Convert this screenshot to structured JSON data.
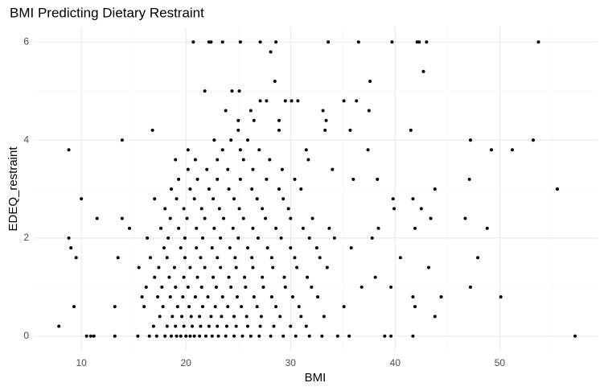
{
  "chart_data": {
    "type": "scatter",
    "title": "BMI Predicting Dietary Restraint",
    "x_label": "BMI",
    "y_label": "EDEQ_restraint",
    "color": "#000000",
    "grid": true,
    "xlim": [
      5.45,
      59.35
    ],
    "ylim": [
      -0.3,
      6.3
    ],
    "xticks": [
      10,
      20,
      30,
      40,
      50
    ],
    "yticks": [
      0,
      2,
      4,
      6
    ],
    "xminor": [
      15,
      25,
      35,
      45,
      55
    ],
    "yminor": [
      1,
      3,
      5
    ],
    "x": [
      15.4,
      16.5,
      17.2,
      18.0,
      18.6,
      19.1,
      19.5,
      20.0,
      20.4,
      20.8,
      21.3,
      21.9,
      22.5,
      23.1,
      23.8,
      24.6,
      25.4,
      26.2,
      27.0,
      28.1,
      29.3,
      30.5,
      31.8,
      33.0,
      34.5,
      35.6,
      10.5,
      10.9,
      11.2,
      13.2,
      39.6,
      39.0,
      41.7,
      57.2,
      16.9,
      18.2,
      19.0,
      19.8,
      20.6,
      21.4,
      22.2,
      23.0,
      23.9,
      24.8,
      25.9,
      27.1,
      28.4,
      30.0,
      31.5,
      7.85,
      17.5,
      18.7,
      19.6,
      20.5,
      21.3,
      22.4,
      23.4,
      24.6,
      25.8,
      27.2,
      29.0,
      31.0,
      33.2,
      43.8,
      16.0,
      17.8,
      19.2,
      20.3,
      21.6,
      22.8,
      24.0,
      25.3,
      26.8,
      28.6,
      30.8,
      35.1,
      9.3,
      13.2,
      41.9,
      15.8,
      17.3,
      18.5,
      19.7,
      20.9,
      22.1,
      23.5,
      24.9,
      26.5,
      28.2,
      30.2,
      32.6,
      41.7,
      44.4,
      50.1,
      16.2,
      17.7,
      19.0,
      20.2,
      21.5,
      22.9,
      24.3,
      25.7,
      27.4,
      29.5,
      32.0,
      36.8,
      47.2,
      39.6,
      17.0,
      18.4,
      19.8,
      21.1,
      22.6,
      24.1,
      25.6,
      27.3,
      29.4,
      31.6,
      38.1,
      15.5,
      17.4,
      18.9,
      20.4,
      21.8,
      23.3,
      24.8,
      26.4,
      28.3,
      30.6,
      33.5,
      43.2,
      16.6,
      18.2,
      19.9,
      21.4,
      23.0,
      24.7,
      26.3,
      28.2,
      30.4,
      32.8,
      9.5,
      13.5,
      40.5,
      47.9,
      17.9,
      19.5,
      21.0,
      22.5,
      24.2,
      25.9,
      27.8,
      30.0,
      32.5,
      35.8,
      9.0,
      16.3,
      18.3,
      19.9,
      21.6,
      23.3,
      25.0,
      26.9,
      29.1,
      31.8,
      34.2,
      8.8,
      37.8,
      17.6,
      19.3,
      21.0,
      22.7,
      24.5,
      26.4,
      28.6,
      31.2,
      33.7,
      14.6,
      48.8,
      38.4,
      41.9,
      18.5,
      20.1,
      21.8,
      23.6,
      25.5,
      27.6,
      30.0,
      32.1,
      11.5,
      13.9,
      46.7,
      43.4,
      18.0,
      19.8,
      21.5,
      23.2,
      25.1,
      27.3,
      29.8,
      39.9,
      42.5,
      17.0,
      19.1,
      20.8,
      22.6,
      24.6,
      26.8,
      29.3,
      10.0,
      39.8,
      41.7,
      18.6,
      20.4,
      22.2,
      24.1,
      26.3,
      28.9,
      31.0,
      55.5,
      43.8,
      19.3,
      21.1,
      23.0,
      25.2,
      27.7,
      30.4,
      36.0,
      38.3,
      47.1,
      20.2,
      22.0,
      24.0,
      26.4,
      29.2,
      34.0,
      19.0,
      20.9,
      23.0,
      25.5,
      28.0,
      31.7,
      8.8,
      20.2,
      23.5,
      25.2,
      27.0,
      31.5,
      37.4,
      49.2,
      51.2,
      13.9,
      22.7,
      24.3,
      25.9,
      47.2,
      53.2,
      16.8,
      25.0,
      28.9,
      33.3,
      35.7,
      41.5,
      25.0,
      26.5,
      28.9,
      33.4,
      23.8,
      26.2,
      33.1,
      37.5,
      27.1,
      27.7,
      29.5,
      30.1,
      30.7,
      35.1,
      36.3,
      21.8,
      24.4,
      25.1,
      28.5,
      37.6,
      42.7,
      28.1,
      20.7,
      22.2,
      22.4,
      23.5,
      25.2,
      27.1,
      28.6,
      33.6,
      36.5,
      39.7,
      42.1,
      42.3,
      43.0,
      53.7
    ],
    "values": [
      0,
      0,
      0,
      0,
      0,
      0,
      0,
      0,
      0,
      0,
      0,
      0,
      0,
      0,
      0,
      0,
      0,
      0,
      0,
      0,
      0,
      0,
      0,
      0,
      0,
      0,
      0,
      0,
      0,
      0,
      0,
      0,
      0,
      0,
      0.2,
      0.2,
      0.2,
      0.2,
      0.2,
      0.2,
      0.2,
      0.2,
      0.2,
      0.2,
      0.2,
      0.2,
      0.2,
      0.2,
      0.2,
      0.2,
      0.4,
      0.4,
      0.4,
      0.4,
      0.4,
      0.4,
      0.4,
      0.4,
      0.4,
      0.4,
      0.4,
      0.4,
      0.4,
      0.4,
      0.6,
      0.6,
      0.6,
      0.6,
      0.6,
      0.6,
      0.6,
      0.6,
      0.6,
      0.6,
      0.6,
      0.6,
      0.6,
      0.6,
      0.6,
      0.8,
      0.8,
      0.8,
      0.8,
      0.8,
      0.8,
      0.8,
      0.8,
      0.8,
      0.8,
      0.8,
      0.8,
      0.8,
      0.8,
      0.8,
      1,
      1,
      1,
      1,
      1,
      1,
      1,
      1,
      1,
      1,
      1,
      1,
      1,
      1,
      1.2,
      1.2,
      1.2,
      1.2,
      1.2,
      1.2,
      1.2,
      1.2,
      1.2,
      1.2,
      1.2,
      1.4,
      1.4,
      1.4,
      1.4,
      1.4,
      1.4,
      1.4,
      1.4,
      1.4,
      1.4,
      1.4,
      1.4,
      1.6,
      1.6,
      1.6,
      1.6,
      1.6,
      1.6,
      1.6,
      1.6,
      1.6,
      1.6,
      1.6,
      1.6,
      1.6,
      1.6,
      1.8,
      1.8,
      1.8,
      1.8,
      1.8,
      1.8,
      1.8,
      1.8,
      1.8,
      1.8,
      1.8,
      2,
      2,
      2,
      2,
      2,
      2,
      2,
      2,
      2,
      2,
      2,
      2,
      2.2,
      2.2,
      2.2,
      2.2,
      2.2,
      2.2,
      2.2,
      2.2,
      2.2,
      2.2,
      2.2,
      2.2,
      2.2,
      2.4,
      2.4,
      2.4,
      2.4,
      2.4,
      2.4,
      2.4,
      2.4,
      2.4,
      2.4,
      2.4,
      2.4,
      2.6,
      2.6,
      2.6,
      2.6,
      2.6,
      2.6,
      2.6,
      2.6,
      2.6,
      2.8,
      2.8,
      2.8,
      2.8,
      2.8,
      2.8,
      2.8,
      2.8,
      2.8,
      2.8,
      3,
      3,
      3,
      3,
      3,
      3,
      3,
      3,
      3,
      3.2,
      3.2,
      3.2,
      3.2,
      3.2,
      3.2,
      3.2,
      3.2,
      3.2,
      3.4,
      3.4,
      3.4,
      3.4,
      3.4,
      3.4,
      3.6,
      3.6,
      3.6,
      3.6,
      3.6,
      3.6,
      3.8,
      3.8,
      3.8,
      3.8,
      3.8,
      3.8,
      3.8,
      3.8,
      3.8,
      4,
      4,
      4,
      4,
      4,
      4,
      4.2,
      4.2,
      4.2,
      4.2,
      4.2,
      4.2,
      4.4,
      4.4,
      4.4,
      4.4,
      4.6,
      4.6,
      4.6,
      4.6,
      4.8,
      4.8,
      4.8,
      4.8,
      4.8,
      4.8,
      4.8,
      5,
      5,
      5,
      5.2,
      5.2,
      5.4,
      5.8,
      6,
      6,
      6,
      6,
      6,
      6,
      6,
      6,
      6,
      6,
      6,
      6,
      6,
      6
    ]
  }
}
